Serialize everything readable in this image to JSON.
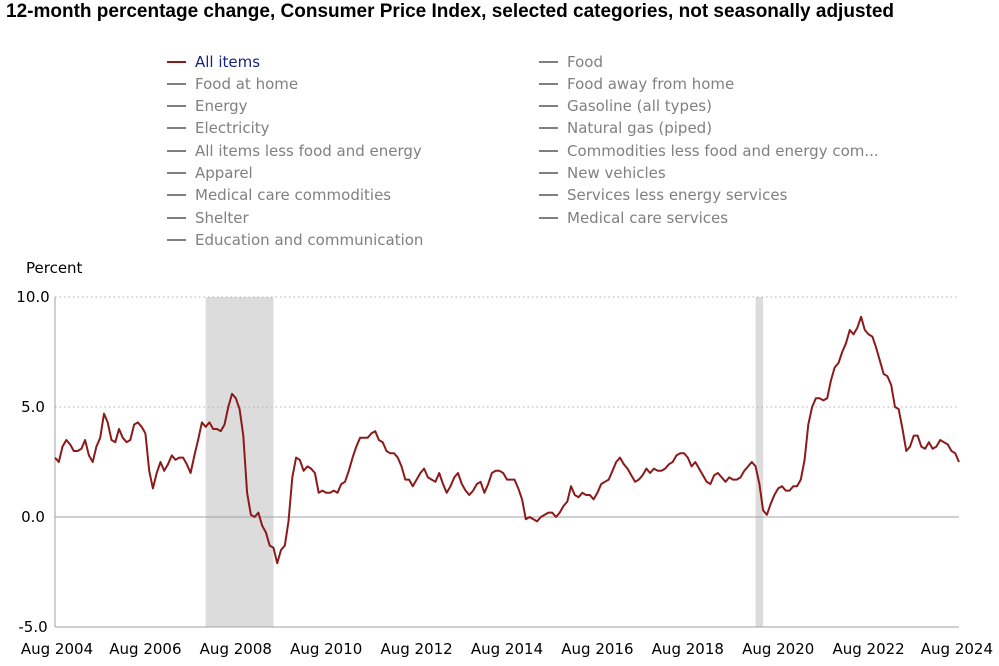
{
  "title": "12-month percentage change, Consumer Price Index, selected categories, not seasonally adjusted",
  "legend": {
    "left": [
      {
        "label": "All items",
        "active": true
      },
      {
        "label": "Food at home",
        "active": false
      },
      {
        "label": "Energy",
        "active": false
      },
      {
        "label": "Electricity",
        "active": false
      },
      {
        "label": "All items less food and energy",
        "active": false
      },
      {
        "label": "Apparel",
        "active": false
      },
      {
        "label": "Medical care commodities",
        "active": false
      },
      {
        "label": "Shelter",
        "active": false
      },
      {
        "label": "Education and communication",
        "active": false
      }
    ],
    "right": [
      {
        "label": "Food",
        "active": false
      },
      {
        "label": "Food away from home",
        "active": false
      },
      {
        "label": "Gasoline (all types)",
        "active": false
      },
      {
        "label": "Natural gas (piped)",
        "active": false
      },
      {
        "label": "Commodities less food and energy com...",
        "active": false
      },
      {
        "label": "New vehicles",
        "active": false
      },
      {
        "label": "Services less energy services",
        "active": false
      },
      {
        "label": "Medical care services",
        "active": false
      }
    ]
  },
  "colors": {
    "active_series": "#8b1a1a",
    "active_label": "#1a237e",
    "inactive": "#808080",
    "recession_band": "#dcdcdc",
    "grid": "#b0b0b0"
  },
  "chart_data": {
    "type": "line",
    "ylabel": "Percent",
    "ylim": [
      -5,
      10
    ],
    "yticks": [
      10,
      5,
      0,
      -5
    ],
    "ytick_labels": [
      "10.0",
      "5.0",
      "0.0",
      "-5.0"
    ],
    "xlim": [
      "2004-08",
      "2024-08"
    ],
    "xtick_labels": [
      "Aug 2004",
      "Aug 2006",
      "Aug 2008",
      "Aug 2010",
      "Aug 2012",
      "Aug 2014",
      "Aug 2016",
      "Aug 2018",
      "Aug 2020",
      "Aug 2022",
      "Aug 2024"
    ],
    "grid": "horizontal dotted",
    "shaded_periods": [
      {
        "start": "2007-12",
        "end": "2009-06"
      },
      {
        "start": "2020-02",
        "end": "2020-04"
      }
    ],
    "series": [
      {
        "name": "All items",
        "points": [
          [
            "2004-08",
            2.7
          ],
          [
            "2004-09",
            2.5
          ],
          [
            "2004-10",
            3.2
          ],
          [
            "2004-11",
            3.5
          ],
          [
            "2004-12",
            3.3
          ],
          [
            "2005-01",
            3.0
          ],
          [
            "2005-02",
            3.0
          ],
          [
            "2005-03",
            3.1
          ],
          [
            "2005-04",
            3.5
          ],
          [
            "2005-05",
            2.8
          ],
          [
            "2005-06",
            2.5
          ],
          [
            "2005-07",
            3.2
          ],
          [
            "2005-08",
            3.6
          ],
          [
            "2005-09",
            4.7
          ],
          [
            "2005-10",
            4.3
          ],
          [
            "2005-11",
            3.5
          ],
          [
            "2005-12",
            3.4
          ],
          [
            "2006-01",
            4.0
          ],
          [
            "2006-02",
            3.6
          ],
          [
            "2006-03",
            3.4
          ],
          [
            "2006-04",
            3.5
          ],
          [
            "2006-05",
            4.2
          ],
          [
            "2006-06",
            4.3
          ],
          [
            "2006-07",
            4.1
          ],
          [
            "2006-08",
            3.8
          ],
          [
            "2006-09",
            2.1
          ],
          [
            "2006-10",
            1.3
          ],
          [
            "2006-11",
            2.0
          ],
          [
            "2006-12",
            2.5
          ],
          [
            "2007-01",
            2.1
          ],
          [
            "2007-02",
            2.4
          ],
          [
            "2007-03",
            2.8
          ],
          [
            "2007-04",
            2.6
          ],
          [
            "2007-05",
            2.7
          ],
          [
            "2007-06",
            2.7
          ],
          [
            "2007-07",
            2.4
          ],
          [
            "2007-08",
            2.0
          ],
          [
            "2007-09",
            2.8
          ],
          [
            "2007-10",
            3.5
          ],
          [
            "2007-11",
            4.3
          ],
          [
            "2007-12",
            4.1
          ],
          [
            "2008-01",
            4.3
          ],
          [
            "2008-02",
            4.0
          ],
          [
            "2008-03",
            4.0
          ],
          [
            "2008-04",
            3.9
          ],
          [
            "2008-05",
            4.2
          ],
          [
            "2008-06",
            5.0
          ],
          [
            "2008-07",
            5.6
          ],
          [
            "2008-08",
            5.4
          ],
          [
            "2008-09",
            4.9
          ],
          [
            "2008-10",
            3.7
          ],
          [
            "2008-11",
            1.1
          ],
          [
            "2008-12",
            0.1
          ],
          [
            "2009-01",
            0.0
          ],
          [
            "2009-02",
            0.2
          ],
          [
            "2009-03",
            -0.4
          ],
          [
            "2009-04",
            -0.7
          ],
          [
            "2009-05",
            -1.3
          ],
          [
            "2009-06",
            -1.4
          ],
          [
            "2009-07",
            -2.1
          ],
          [
            "2009-08",
            -1.5
          ],
          [
            "2009-09",
            -1.3
          ],
          [
            "2009-10",
            -0.2
          ],
          [
            "2009-11",
            1.8
          ],
          [
            "2009-12",
            2.7
          ],
          [
            "2010-01",
            2.6
          ],
          [
            "2010-02",
            2.1
          ],
          [
            "2010-03",
            2.3
          ],
          [
            "2010-04",
            2.2
          ],
          [
            "2010-05",
            2.0
          ],
          [
            "2010-06",
            1.1
          ],
          [
            "2010-07",
            1.2
          ],
          [
            "2010-08",
            1.1
          ],
          [
            "2010-09",
            1.1
          ],
          [
            "2010-10",
            1.2
          ],
          [
            "2010-11",
            1.1
          ],
          [
            "2010-12",
            1.5
          ],
          [
            "2011-01",
            1.6
          ],
          [
            "2011-02",
            2.1
          ],
          [
            "2011-03",
            2.7
          ],
          [
            "2011-04",
            3.2
          ],
          [
            "2011-05",
            3.6
          ],
          [
            "2011-06",
            3.6
          ],
          [
            "2011-07",
            3.6
          ],
          [
            "2011-08",
            3.8
          ],
          [
            "2011-09",
            3.9
          ],
          [
            "2011-10",
            3.5
          ],
          [
            "2011-11",
            3.4
          ],
          [
            "2011-12",
            3.0
          ],
          [
            "2012-01",
            2.9
          ],
          [
            "2012-02",
            2.9
          ],
          [
            "2012-03",
            2.7
          ],
          [
            "2012-04",
            2.3
          ],
          [
            "2012-05",
            1.7
          ],
          [
            "2012-06",
            1.7
          ],
          [
            "2012-07",
            1.4
          ],
          [
            "2012-08",
            1.7
          ],
          [
            "2012-09",
            2.0
          ],
          [
            "2012-10",
            2.2
          ],
          [
            "2012-11",
            1.8
          ],
          [
            "2012-12",
            1.7
          ],
          [
            "2013-01",
            1.6
          ],
          [
            "2013-02",
            2.0
          ],
          [
            "2013-03",
            1.5
          ],
          [
            "2013-04",
            1.1
          ],
          [
            "2013-05",
            1.4
          ],
          [
            "2013-06",
            1.8
          ],
          [
            "2013-07",
            2.0
          ],
          [
            "2013-08",
            1.5
          ],
          [
            "2013-09",
            1.2
          ],
          [
            "2013-10",
            1.0
          ],
          [
            "2013-11",
            1.2
          ],
          [
            "2013-12",
            1.5
          ],
          [
            "2014-01",
            1.6
          ],
          [
            "2014-02",
            1.1
          ],
          [
            "2014-03",
            1.5
          ],
          [
            "2014-04",
            2.0
          ],
          [
            "2014-05",
            2.1
          ],
          [
            "2014-06",
            2.1
          ],
          [
            "2014-07",
            2.0
          ],
          [
            "2014-08",
            1.7
          ],
          [
            "2014-09",
            1.7
          ],
          [
            "2014-10",
            1.7
          ],
          [
            "2014-11",
            1.3
          ],
          [
            "2014-12",
            0.8
          ],
          [
            "2015-01",
            -0.1
          ],
          [
            "2015-02",
            0.0
          ],
          [
            "2015-03",
            -0.1
          ],
          [
            "2015-04",
            -0.2
          ],
          [
            "2015-05",
            0.0
          ],
          [
            "2015-06",
            0.1
          ],
          [
            "2015-07",
            0.2
          ],
          [
            "2015-08",
            0.2
          ],
          [
            "2015-09",
            0.0
          ],
          [
            "2015-10",
            0.2
          ],
          [
            "2015-11",
            0.5
          ],
          [
            "2015-12",
            0.7
          ],
          [
            "2016-01",
            1.4
          ],
          [
            "2016-02",
            1.0
          ],
          [
            "2016-03",
            0.9
          ],
          [
            "2016-04",
            1.1
          ],
          [
            "2016-05",
            1.0
          ],
          [
            "2016-06",
            1.0
          ],
          [
            "2016-07",
            0.8
          ],
          [
            "2016-08",
            1.1
          ],
          [
            "2016-09",
            1.5
          ],
          [
            "2016-10",
            1.6
          ],
          [
            "2016-11",
            1.7
          ],
          [
            "2016-12",
            2.1
          ],
          [
            "2017-01",
            2.5
          ],
          [
            "2017-02",
            2.7
          ],
          [
            "2017-03",
            2.4
          ],
          [
            "2017-04",
            2.2
          ],
          [
            "2017-05",
            1.9
          ],
          [
            "2017-06",
            1.6
          ],
          [
            "2017-07",
            1.7
          ],
          [
            "2017-08",
            1.9
          ],
          [
            "2017-09",
            2.2
          ],
          [
            "2017-10",
            2.0
          ],
          [
            "2017-11",
            2.2
          ],
          [
            "2017-12",
            2.1
          ],
          [
            "2018-01",
            2.1
          ],
          [
            "2018-02",
            2.2
          ],
          [
            "2018-03",
            2.4
          ],
          [
            "2018-04",
            2.5
          ],
          [
            "2018-05",
            2.8
          ],
          [
            "2018-06",
            2.9
          ],
          [
            "2018-07",
            2.9
          ],
          [
            "2018-08",
            2.7
          ],
          [
            "2018-09",
            2.3
          ],
          [
            "2018-10",
            2.5
          ],
          [
            "2018-11",
            2.2
          ],
          [
            "2018-12",
            1.9
          ],
          [
            "2019-01",
            1.6
          ],
          [
            "2019-02",
            1.5
          ],
          [
            "2019-03",
            1.9
          ],
          [
            "2019-04",
            2.0
          ],
          [
            "2019-05",
            1.8
          ],
          [
            "2019-06",
            1.6
          ],
          [
            "2019-07",
            1.8
          ],
          [
            "2019-08",
            1.7
          ],
          [
            "2019-09",
            1.7
          ],
          [
            "2019-10",
            1.8
          ],
          [
            "2019-11",
            2.1
          ],
          [
            "2019-12",
            2.3
          ],
          [
            "2020-01",
            2.5
          ],
          [
            "2020-02",
            2.3
          ],
          [
            "2020-03",
            1.5
          ],
          [
            "2020-04",
            0.3
          ],
          [
            "2020-05",
            0.1
          ],
          [
            "2020-06",
            0.6
          ],
          [
            "2020-07",
            1.0
          ],
          [
            "2020-08",
            1.3
          ],
          [
            "2020-09",
            1.4
          ],
          [
            "2020-10",
            1.2
          ],
          [
            "2020-11",
            1.2
          ],
          [
            "2020-12",
            1.4
          ],
          [
            "2021-01",
            1.4
          ],
          [
            "2021-02",
            1.7
          ],
          [
            "2021-03",
            2.6
          ],
          [
            "2021-04",
            4.2
          ],
          [
            "2021-05",
            5.0
          ],
          [
            "2021-06",
            5.4
          ],
          [
            "2021-07",
            5.4
          ],
          [
            "2021-08",
            5.3
          ],
          [
            "2021-09",
            5.4
          ],
          [
            "2021-10",
            6.2
          ],
          [
            "2021-11",
            6.8
          ],
          [
            "2021-12",
            7.0
          ],
          [
            "2022-01",
            7.5
          ],
          [
            "2022-02",
            7.9
          ],
          [
            "2022-03",
            8.5
          ],
          [
            "2022-04",
            8.3
          ],
          [
            "2022-05",
            8.6
          ],
          [
            "2022-06",
            9.1
          ],
          [
            "2022-07",
            8.5
          ],
          [
            "2022-08",
            8.3
          ],
          [
            "2022-09",
            8.2
          ],
          [
            "2022-10",
            7.7
          ],
          [
            "2022-11",
            7.1
          ],
          [
            "2022-12",
            6.5
          ],
          [
            "2023-01",
            6.4
          ],
          [
            "2023-02",
            6.0
          ],
          [
            "2023-03",
            5.0
          ],
          [
            "2023-04",
            4.9
          ],
          [
            "2023-05",
            4.0
          ],
          [
            "2023-06",
            3.0
          ],
          [
            "2023-07",
            3.2
          ],
          [
            "2023-08",
            3.7
          ],
          [
            "2023-09",
            3.7
          ],
          [
            "2023-10",
            3.2
          ],
          [
            "2023-11",
            3.1
          ],
          [
            "2023-12",
            3.4
          ],
          [
            "2024-01",
            3.1
          ],
          [
            "2024-02",
            3.2
          ],
          [
            "2024-03",
            3.5
          ],
          [
            "2024-04",
            3.4
          ],
          [
            "2024-05",
            3.3
          ],
          [
            "2024-06",
            3.0
          ],
          [
            "2024-07",
            2.9
          ],
          [
            "2024-08",
            2.5
          ]
        ]
      }
    ]
  }
}
